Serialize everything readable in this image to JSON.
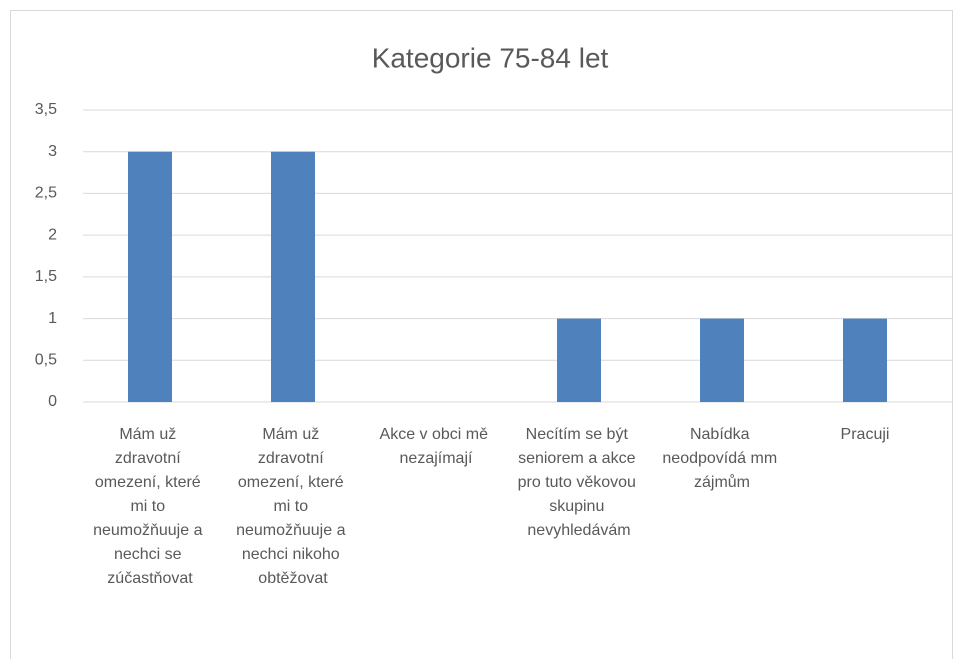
{
  "chart_data": {
    "type": "bar",
    "title": "Kategorie 75-84 let",
    "categories": [
      "Mám už zdravotní omezení, které mi to neumožňuuje a nechci se zúčastňovat",
      "Mám už zdravotní omezení, které mi to neumožňuuje a nechci nikoho obtěžovat",
      "Akce v obci mě nezajímají",
      "Necítím se být seniorem a akce pro tuto věkovou skupinu nevyhledávám",
      "Nabídka neodpovídá mm zájmům",
      "Pracuji"
    ],
    "values": [
      3,
      3,
      0,
      1,
      1,
      1
    ],
    "color": "#4f81bd",
    "ylim": [
      0,
      3.5
    ],
    "yticks": [
      0,
      {
        "value": 0.5,
        "label": "0,5"
      },
      1,
      {
        "value": 1.5,
        "label": "1,5"
      },
      2,
      {
        "value": 2.5,
        "label": "2,5"
      },
      3,
      {
        "value": 3.5,
        "label": "3,5"
      }
    ],
    "grid": true
  }
}
